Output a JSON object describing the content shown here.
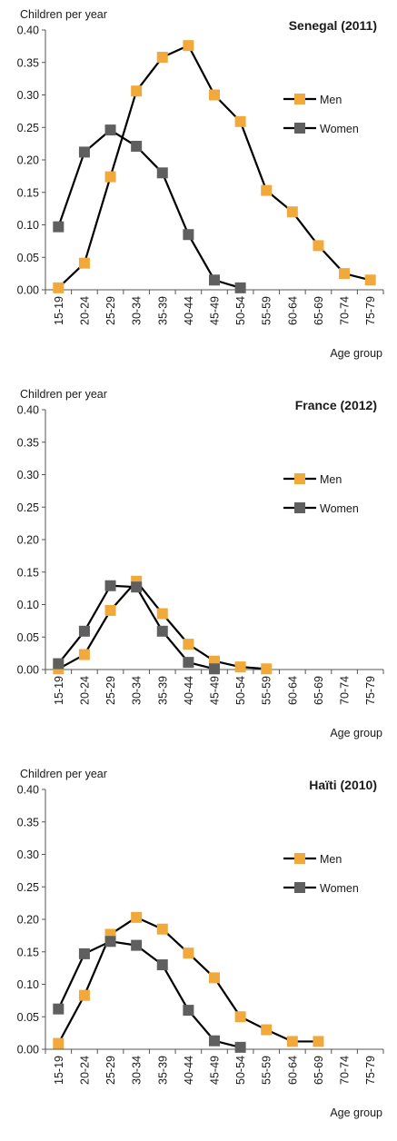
{
  "chart_data": [
    {
      "type": "line",
      "title": "Senegal (2011)",
      "ylabel": "Children per year",
      "xlabel": "Age group",
      "ylim": [
        0,
        0.4
      ],
      "yticks": [
        "0.00",
        "0.05",
        "0.10",
        "0.15",
        "0.20",
        "0.25",
        "0.30",
        "0.35",
        "0.40"
      ],
      "categories": [
        "15-19",
        "20-24",
        "25-29",
        "30-34",
        "35-39",
        "40-44",
        "45-49",
        "50-54",
        "55-59",
        "60-64",
        "65-69",
        "70-74",
        "75-79"
      ],
      "grid": false,
      "legend_position": "right",
      "series": [
        {
          "name": "Men",
          "color": "#F2A93B",
          "marker": "square",
          "values": [
            0.003,
            0.041,
            0.174,
            0.306,
            0.358,
            0.376,
            0.3,
            0.259,
            0.153,
            0.12,
            0.068,
            0.025,
            0.015
          ]
        },
        {
          "name": "Women",
          "color": "#5F5F5F",
          "marker": "square",
          "values": [
            0.097,
            0.212,
            0.246,
            0.221,
            0.18,
            0.085,
            0.015,
            0.003,
            null,
            null,
            null,
            null,
            null
          ]
        }
      ]
    },
    {
      "type": "line",
      "title": "France (2012)",
      "ylabel": "Children per year",
      "xlabel": "Age group",
      "ylim": [
        0,
        0.4
      ],
      "yticks": [
        "0.00",
        "0.05",
        "0.10",
        "0.15",
        "0.20",
        "0.25",
        "0.30",
        "0.35",
        "0.40"
      ],
      "categories": [
        "15-19",
        "20-24",
        "25-29",
        "30-34",
        "35-39",
        "40-44",
        "45-49",
        "50-54",
        "55-59",
        "60-64",
        "65-69",
        "70-74",
        "75-79"
      ],
      "grid": false,
      "legend_position": "right",
      "series": [
        {
          "name": "Men",
          "color": "#F2A93B",
          "marker": "square",
          "values": [
            0.001,
            0.023,
            0.091,
            0.136,
            0.086,
            0.039,
            0.013,
            0.004,
            0.001,
            null,
            null,
            null,
            null
          ]
        },
        {
          "name": "Women",
          "color": "#5F5F5F",
          "marker": "square",
          "values": [
            0.009,
            0.059,
            0.129,
            0.127,
            0.059,
            0.011,
            0.001,
            null,
            null,
            null,
            null,
            null,
            null
          ]
        }
      ]
    },
    {
      "type": "line",
      "title": "Haïti (2010)",
      "ylabel": "Children per year",
      "xlabel": "Age group",
      "ylim": [
        0,
        0.4
      ],
      "yticks": [
        "0.00",
        "0.05",
        "0.10",
        "0.15",
        "0.20",
        "0.25",
        "0.30",
        "0.35",
        "0.40"
      ],
      "categories": [
        "15-19",
        "20-24",
        "25-29",
        "30-34",
        "35-39",
        "40-44",
        "45-49",
        "50-54",
        "55-59",
        "60-64",
        "65-69",
        "70-74",
        "75-79"
      ],
      "grid": false,
      "legend_position": "right",
      "series": [
        {
          "name": "Men",
          "color": "#F2A93B",
          "marker": "square",
          "values": [
            0.009,
            0.083,
            0.177,
            0.203,
            0.185,
            0.148,
            0.11,
            0.05,
            0.03,
            0.012,
            0.012,
            null,
            null
          ]
        },
        {
          "name": "Women",
          "color": "#5F5F5F",
          "marker": "square",
          "values": [
            0.062,
            0.147,
            0.166,
            0.16,
            0.13,
            0.06,
            0.013,
            0.003,
            null,
            null,
            null,
            null,
            null
          ]
        }
      ]
    }
  ]
}
